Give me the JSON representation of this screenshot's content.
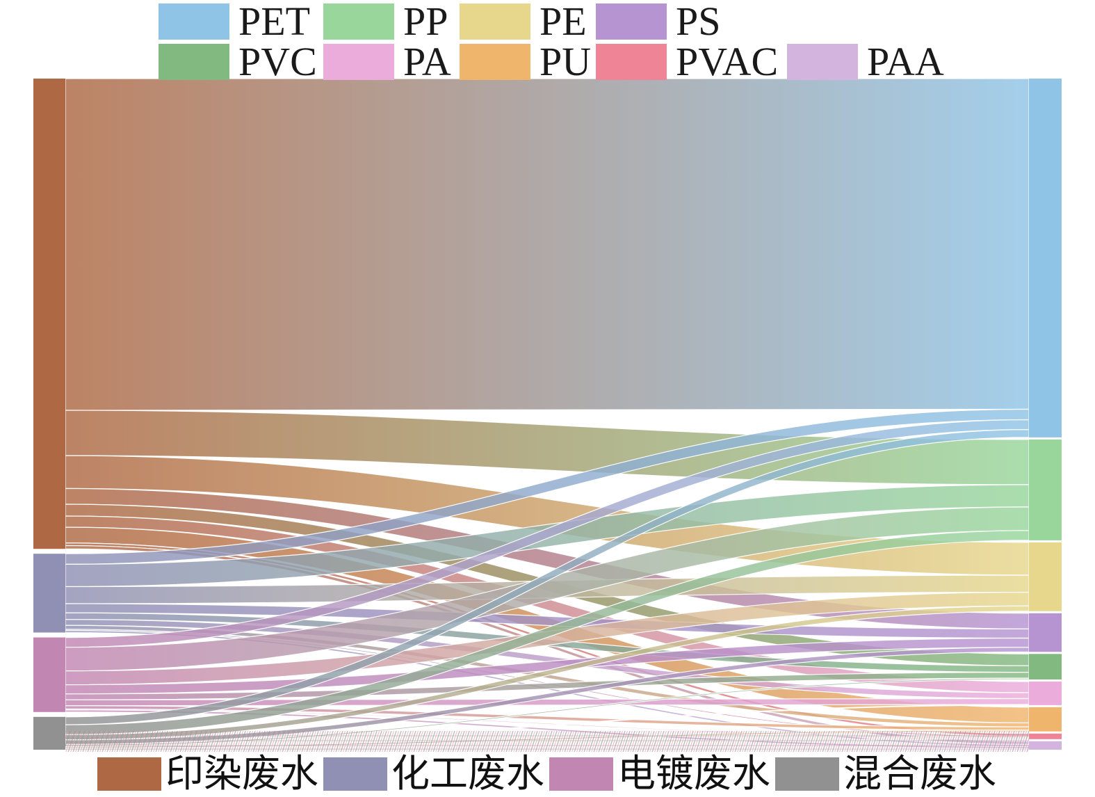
{
  "figure": {
    "description_visible_text_only": true,
    "top_legend_title": "",
    "bottom_legend_title": ""
  },
  "chart_data": {
    "type": "sankey",
    "title": "",
    "value_unit": "percent_of_total_flow_estimated_from_ribbon_widths",
    "layout": {
      "sources_side": "left",
      "targets_side": "right",
      "legend_top": "polymer types",
      "legend_bottom": "wastewater types"
    },
    "sources": [
      {
        "id": "dyeing",
        "label": "印染废水",
        "color": "#AE6843",
        "total": 71.6
      },
      {
        "id": "chemical",
        "label": "化工废水",
        "color": "#8F90B4",
        "total": 12.0
      },
      {
        "id": "electroplating",
        "label": "电镀废水",
        "color": "#C286B2",
        "total": 11.35
      },
      {
        "id": "mixed",
        "label": "混合废水",
        "color": "#919191",
        "total": 5.0
      }
    ],
    "targets": [
      {
        "id": "PET",
        "label": "PET",
        "color": "#8FC4E6",
        "total": 54.8
      },
      {
        "id": "PP",
        "label": "PP",
        "color": "#98D69C",
        "total": 15.4
      },
      {
        "id": "PE",
        "label": "PE",
        "color": "#E7D78C",
        "total": 10.5
      },
      {
        "id": "PS",
        "label": "PS",
        "color": "#B694D2",
        "total": 5.9
      },
      {
        "id": "PVC",
        "label": "PVC",
        "color": "#82B981",
        "total": 3.9
      },
      {
        "id": "PA",
        "label": "PA",
        "color": "#EBACDC",
        "total": 3.6
      },
      {
        "id": "PU",
        "label": "PU",
        "color": "#F0B56D",
        "total": 3.7
      },
      {
        "id": "PVAC",
        "label": "PVAC",
        "color": "#EE8495",
        "total": 0.85
      },
      {
        "id": "PAA",
        "label": "PAA",
        "color": "#D2B4DF",
        "total": 1.3
      }
    ],
    "flows": [
      {
        "source": "dyeing",
        "target": "PET",
        "value": 50.5
      },
      {
        "source": "dyeing",
        "target": "PP",
        "value": 6.9
      },
      {
        "source": "dyeing",
        "target": "PE",
        "value": 5.0
      },
      {
        "source": "dyeing",
        "target": "PS",
        "value": 2.4
      },
      {
        "source": "dyeing",
        "target": "PVC",
        "value": 1.8
      },
      {
        "source": "dyeing",
        "target": "PA",
        "value": 1.7
      },
      {
        "source": "dyeing",
        "target": "PU",
        "value": 2.4
      },
      {
        "source": "dyeing",
        "target": "PVAC",
        "value": 0.4
      },
      {
        "source": "dyeing",
        "target": "PAA",
        "value": 0.5
      },
      {
        "source": "chemical",
        "target": "PET",
        "value": 1.6
      },
      {
        "source": "chemical",
        "target": "PP",
        "value": 3.4
      },
      {
        "source": "chemical",
        "target": "PE",
        "value": 2.6
      },
      {
        "source": "chemical",
        "target": "PS",
        "value": 1.4
      },
      {
        "source": "chemical",
        "target": "PVC",
        "value": 1.0
      },
      {
        "source": "chemical",
        "target": "PA",
        "value": 0.9
      },
      {
        "source": "chemical",
        "target": "PU",
        "value": 0.6
      },
      {
        "source": "chemical",
        "target": "PVAC",
        "value": 0.2
      },
      {
        "source": "chemical",
        "target": "PAA",
        "value": 0.3
      },
      {
        "source": "electroplating",
        "target": "PET",
        "value": 1.5
      },
      {
        "source": "electroplating",
        "target": "PP",
        "value": 3.6
      },
      {
        "source": "electroplating",
        "target": "PE",
        "value": 2.1
      },
      {
        "source": "electroplating",
        "target": "PS",
        "value": 1.4
      },
      {
        "source": "electroplating",
        "target": "PVC",
        "value": 0.9
      },
      {
        "source": "electroplating",
        "target": "PA",
        "value": 0.9
      },
      {
        "source": "electroplating",
        "target": "PU",
        "value": 0.5
      },
      {
        "source": "electroplating",
        "target": "PVAC",
        "value": 0.15
      },
      {
        "source": "electroplating",
        "target": "PAA",
        "value": 0.3
      },
      {
        "source": "mixed",
        "target": "PET",
        "value": 1.2
      },
      {
        "source": "mixed",
        "target": "PP",
        "value": 1.5
      },
      {
        "source": "mixed",
        "target": "PE",
        "value": 0.8
      },
      {
        "source": "mixed",
        "target": "PS",
        "value": 0.7
      },
      {
        "source": "mixed",
        "target": "PVC",
        "value": 0.2
      },
      {
        "source": "mixed",
        "target": "PA",
        "value": 0.1
      },
      {
        "source": "mixed",
        "target": "PU",
        "value": 0.2
      },
      {
        "source": "mixed",
        "target": "PVAC",
        "value": 0.1
      },
      {
        "source": "mixed",
        "target": "PAA",
        "value": 0.2
      }
    ]
  }
}
